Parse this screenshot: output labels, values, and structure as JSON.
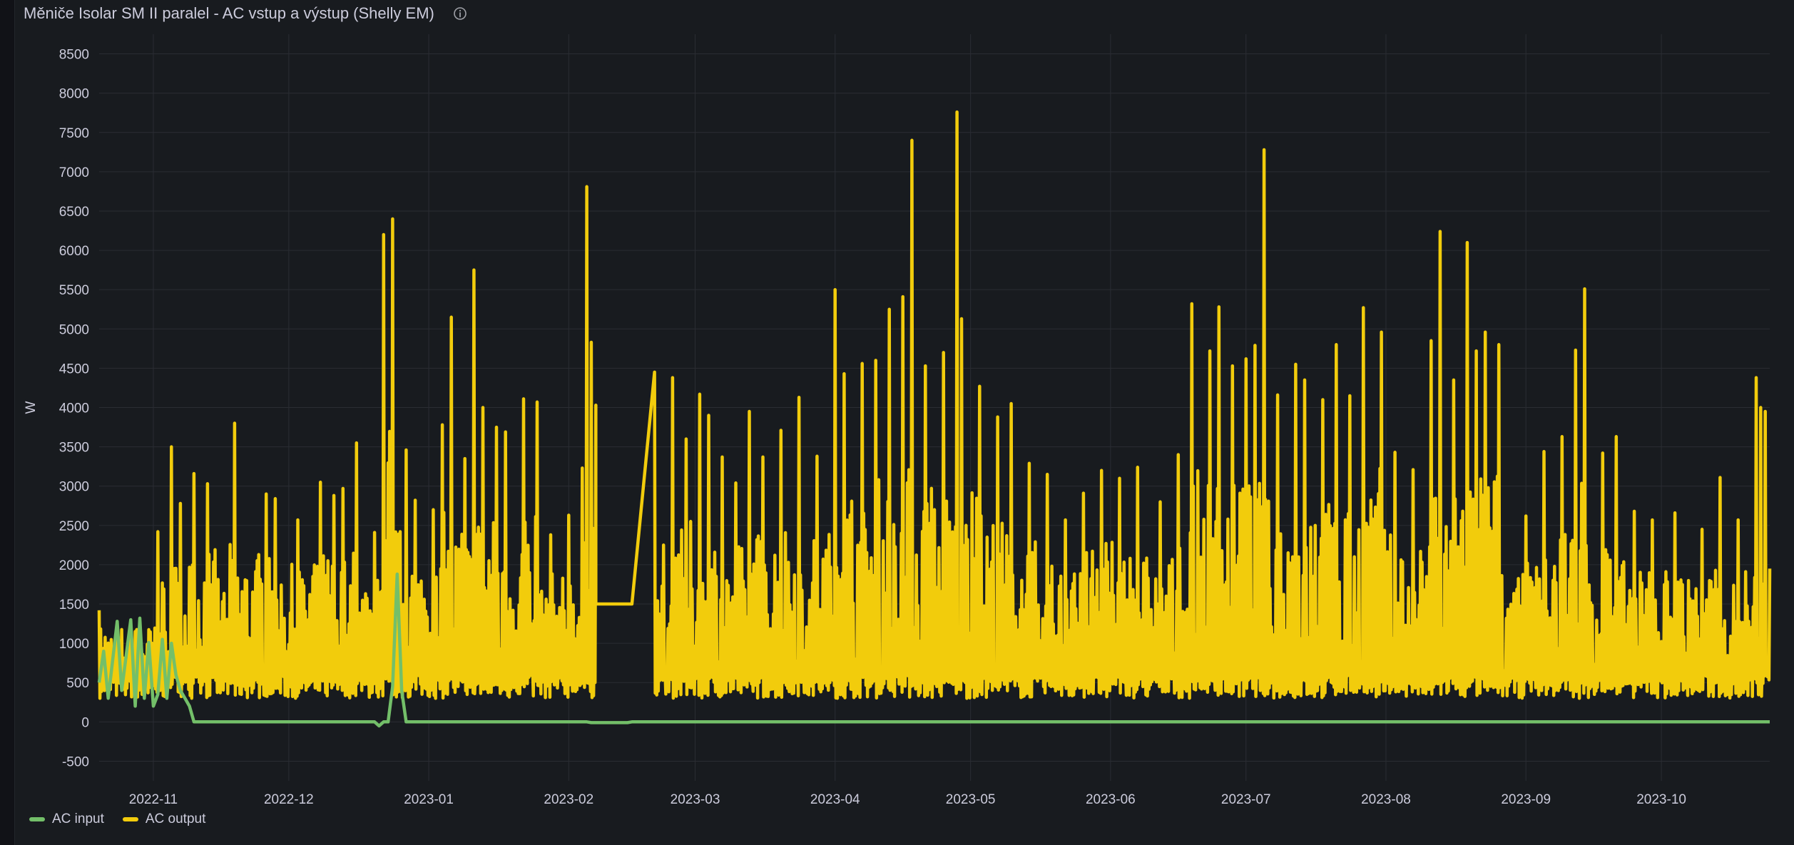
{
  "panel": {
    "title": "Měniče Isolar SM II paralel - AC vstup a výstup (Shelly EM)",
    "info_icon": "info-circle-icon"
  },
  "colors": {
    "background": "#181b1f",
    "grid": "#2a2d33",
    "text": "#ccccdc",
    "ac_input": "#73bf69",
    "ac_output": "#f2cc0c"
  },
  "chart_data": {
    "type": "line",
    "title": "Měniče Isolar SM II paralel - AC vstup a výstup (Shelly EM)",
    "ylabel": "W",
    "xlabel": "",
    "ylim": [
      -750,
      8750
    ],
    "yticks": [
      -500,
      0,
      500,
      1000,
      1500,
      2000,
      2500,
      3000,
      3500,
      4000,
      4500,
      5000,
      5500,
      6000,
      6500,
      7000,
      7500,
      8000,
      8500
    ],
    "xrange": [
      "2022-10-20",
      "2023-10-25"
    ],
    "xticks": [
      "2022-11",
      "2022-12",
      "2023-01",
      "2023-02",
      "2023-03",
      "2023-04",
      "2023-05",
      "2023-06",
      "2023-07",
      "2023-08",
      "2023-09",
      "2023-10"
    ],
    "grid": true,
    "legend_position": "bottom-left",
    "series": [
      {
        "name": "AC input",
        "color": "#73bf69",
        "points": [
          [
            "2022-10-20",
            500
          ],
          [
            "2022-10-21",
            900
          ],
          [
            "2022-10-22",
            300
          ],
          [
            "2022-10-24",
            1280
          ],
          [
            "2022-10-25",
            400
          ],
          [
            "2022-10-27",
            1300
          ],
          [
            "2022-10-28",
            200
          ],
          [
            "2022-10-29",
            1320
          ],
          [
            "2022-10-30",
            300
          ],
          [
            "2022-10-31",
            1010
          ],
          [
            "2022-11-01",
            200
          ],
          [
            "2022-11-02",
            350
          ],
          [
            "2022-11-03",
            1050
          ],
          [
            "2022-11-04",
            300
          ],
          [
            "2022-11-05",
            1000
          ],
          [
            "2022-11-06",
            600
          ],
          [
            "2022-11-07",
            400
          ],
          [
            "2022-11-08",
            300
          ],
          [
            "2022-11-09",
            200
          ],
          [
            "2022-11-10",
            0
          ],
          [
            "2022-12-01",
            0
          ],
          [
            "2022-12-20",
            0
          ],
          [
            "2022-12-21",
            -50
          ],
          [
            "2022-12-22",
            0
          ],
          [
            "2022-12-23",
            0
          ],
          [
            "2022-12-24",
            450
          ],
          [
            "2022-12-25",
            1880
          ],
          [
            "2022-12-26",
            400
          ],
          [
            "2022-12-27",
            0
          ],
          [
            "2023-02-05",
            0
          ],
          [
            "2023-02-06",
            -10
          ],
          [
            "2023-02-14",
            -10
          ],
          [
            "2023-02-15",
            0
          ],
          [
            "2023-10-25",
            0
          ]
        ]
      },
      {
        "name": "AC output",
        "color": "#f2cc0c",
        "peaks": [
          [
            "2022-10-20",
            1420
          ],
          [
            "2022-10-28",
            1150
          ],
          [
            "2022-11-02",
            2420
          ],
          [
            "2022-11-05",
            3500
          ],
          [
            "2022-11-07",
            2780
          ],
          [
            "2022-11-10",
            3160
          ],
          [
            "2022-11-13",
            3030
          ],
          [
            "2022-11-19",
            3800
          ],
          [
            "2022-11-26",
            2900
          ],
          [
            "2022-11-28",
            2840
          ],
          [
            "2022-12-03",
            2570
          ],
          [
            "2022-12-08",
            3050
          ],
          [
            "2022-12-11",
            2880
          ],
          [
            "2022-12-13",
            2970
          ],
          [
            "2022-12-16",
            3550
          ],
          [
            "2022-12-20",
            2410
          ],
          [
            "2022-12-22",
            6200
          ],
          [
            "2022-12-24",
            6400
          ],
          [
            "2022-12-27",
            3460
          ],
          [
            "2022-12-29",
            2820
          ],
          [
            "2023-01-02",
            2700
          ],
          [
            "2023-01-04",
            3780
          ],
          [
            "2023-01-06",
            5150
          ],
          [
            "2023-01-09",
            3350
          ],
          [
            "2023-01-11",
            5750
          ],
          [
            "2023-01-13",
            4000
          ],
          [
            "2023-01-16",
            3750
          ],
          [
            "2023-01-18",
            3690
          ],
          [
            "2023-01-22",
            4110
          ],
          [
            "2023-01-25",
            4070
          ],
          [
            "2023-01-28",
            2380
          ],
          [
            "2023-02-01",
            2630
          ],
          [
            "2023-02-04",
            3230
          ],
          [
            "2023-02-05",
            6810
          ],
          [
            "2023-02-06",
            4830
          ],
          [
            "2023-02-07",
            4030
          ],
          [
            "2023-02-20",
            4450
          ],
          [
            "2023-02-22",
            2250
          ],
          [
            "2023-02-24",
            4380
          ],
          [
            "2023-02-27",
            3600
          ],
          [
            "2023-03-02",
            4170
          ],
          [
            "2023-03-04",
            3900
          ],
          [
            "2023-03-07",
            3370
          ],
          [
            "2023-03-10",
            3040
          ],
          [
            "2023-03-13",
            3950
          ],
          [
            "2023-03-16",
            3370
          ],
          [
            "2023-03-20",
            3710
          ],
          [
            "2023-03-24",
            4130
          ],
          [
            "2023-03-28",
            3380
          ],
          [
            "2023-04-01",
            5500
          ],
          [
            "2023-04-03",
            4430
          ],
          [
            "2023-04-07",
            4560
          ],
          [
            "2023-04-10",
            4600
          ],
          [
            "2023-04-13",
            5250
          ],
          [
            "2023-04-16",
            5410
          ],
          [
            "2023-04-18",
            7400
          ],
          [
            "2023-04-21",
            4530
          ],
          [
            "2023-04-25",
            4700
          ],
          [
            "2023-04-28",
            7760
          ],
          [
            "2023-04-29",
            5130
          ],
          [
            "2023-05-03",
            4270
          ],
          [
            "2023-05-07",
            3880
          ],
          [
            "2023-05-10",
            4050
          ],
          [
            "2023-05-14",
            3290
          ],
          [
            "2023-05-18",
            3150
          ],
          [
            "2023-05-22",
            2570
          ],
          [
            "2023-05-26",
            2910
          ],
          [
            "2023-05-30",
            3200
          ],
          [
            "2023-06-03",
            3100
          ],
          [
            "2023-06-07",
            3240
          ],
          [
            "2023-06-12",
            2800
          ],
          [
            "2023-06-16",
            3400
          ],
          [
            "2023-06-19",
            5320
          ],
          [
            "2023-06-23",
            4720
          ],
          [
            "2023-06-25",
            5280
          ],
          [
            "2023-06-28",
            4530
          ],
          [
            "2023-07-01",
            4620
          ],
          [
            "2023-07-03",
            4790
          ],
          [
            "2023-07-05",
            7280
          ],
          [
            "2023-07-08",
            4160
          ],
          [
            "2023-07-12",
            4550
          ],
          [
            "2023-07-14",
            4350
          ],
          [
            "2023-07-18",
            4100
          ],
          [
            "2023-07-21",
            4800
          ],
          [
            "2023-07-24",
            4150
          ],
          [
            "2023-07-27",
            5270
          ],
          [
            "2023-07-31",
            4960
          ],
          [
            "2023-08-03",
            3430
          ],
          [
            "2023-08-07",
            3210
          ],
          [
            "2023-08-11",
            4850
          ],
          [
            "2023-08-13",
            6240
          ],
          [
            "2023-08-16",
            4350
          ],
          [
            "2023-08-19",
            6100
          ],
          [
            "2023-08-21",
            4720
          ],
          [
            "2023-08-23",
            4960
          ],
          [
            "2023-08-26",
            4800
          ],
          [
            "2023-09-01",
            2620
          ],
          [
            "2023-09-05",
            3440
          ],
          [
            "2023-09-09",
            3630
          ],
          [
            "2023-09-12",
            4730
          ],
          [
            "2023-09-14",
            5510
          ],
          [
            "2023-09-18",
            3420
          ],
          [
            "2023-09-21",
            3630
          ],
          [
            "2023-09-25",
            2680
          ],
          [
            "2023-09-29",
            2570
          ],
          [
            "2023-10-04",
            2660
          ],
          [
            "2023-10-10",
            2450
          ],
          [
            "2023-10-14",
            3110
          ],
          [
            "2023-10-18",
            2570
          ],
          [
            "2023-10-22",
            4380
          ],
          [
            "2023-10-23",
            4000
          ],
          [
            "2023-10-24",
            3950
          ],
          [
            "2023-10-25",
            1950
          ]
        ],
        "flat_segments": [
          {
            "from": "2023-02-07",
            "to": "2023-02-15",
            "value": 1500
          }
        ],
        "typical_min": 300
      }
    ]
  },
  "legend": {
    "items": [
      {
        "label": "AC input",
        "color": "#73bf69"
      },
      {
        "label": "AC output",
        "color": "#f2cc0c"
      }
    ]
  }
}
